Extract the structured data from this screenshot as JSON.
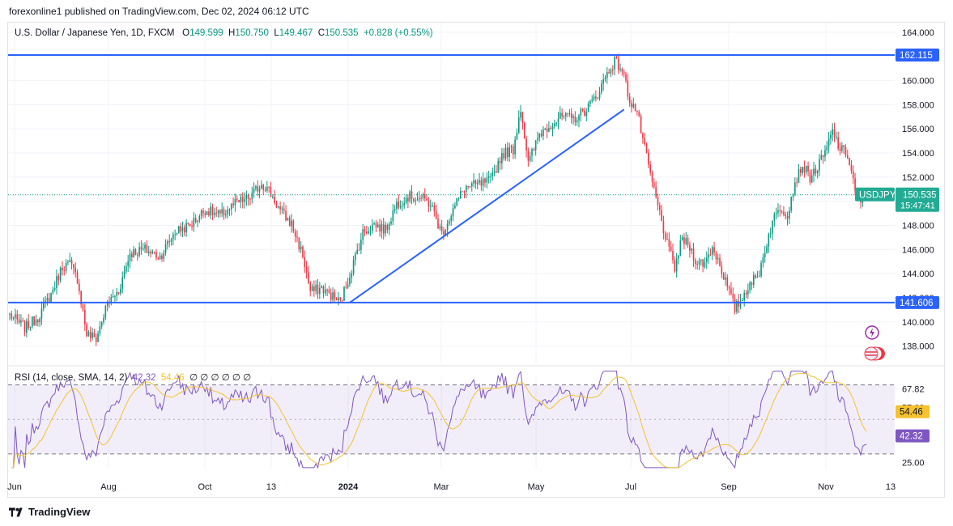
{
  "header": {
    "published": "forexonline1 published on TradingView.com, Dec 02, 2024 06:12 UTC"
  },
  "legend": {
    "symbol": "U.S. Dollar / Japanese Yen, 1D, FXCM",
    "o_label": "O",
    "o": "149.599",
    "h_label": "H",
    "h": "150.750",
    "l_label": "L",
    "l": "149.467",
    "c_label": "C",
    "c": "150.535",
    "change": "+0.828 (+0.55%)"
  },
  "rsi_legend": {
    "label": "RSI (14, close, SMA, 14, 2)",
    "rsi": "42.32",
    "sma": "54.46",
    "extra": "∅ ∅ ∅ ∅ ∅ ∅"
  },
  "price_badges": {
    "level_top": "162.115",
    "level_bottom": "141.606",
    "symbol": "USDJPY",
    "last": "150.535",
    "countdown": "15:47:41",
    "rsi_sma": "54.46",
    "rsi_val": "42.32"
  },
  "footer": {
    "brand": "TradingView"
  },
  "colors": {
    "up": "#089981",
    "down": "#f23645",
    "line": "#2962ff",
    "rsi": "#7e57c2",
    "rsi_sma": "#f5c230",
    "badge_green": "#22ab94"
  },
  "chart_data": {
    "type": "candlestick",
    "symbol": "USDJPY",
    "timeframe": "1D",
    "price_axis": {
      "ticks": [
        "164.000",
        "162.000",
        "160.000",
        "158.000",
        "156.000",
        "154.000",
        "152.000",
        "150.000",
        "148.000",
        "146.000",
        "144.000",
        "142.000",
        "140.000",
        "138.000"
      ],
      "ylim": [
        136.5,
        164.8
      ]
    },
    "x_axis": {
      "labels": [
        "Jun",
        "Aug",
        "Oct",
        "13",
        "2024",
        "Mar",
        "May",
        "Jul",
        "Sep",
        "Nov",
        "13"
      ]
    },
    "anchors": [
      {
        "t": 0,
        "p": 140.6
      },
      {
        "t": 8,
        "p": 139.5
      },
      {
        "t": 15,
        "p": 140.4
      },
      {
        "t": 22,
        "p": 142.3
      },
      {
        "t": 28,
        "p": 144.6
      },
      {
        "t": 32,
        "p": 144.8
      },
      {
        "t": 36,
        "p": 143.6
      },
      {
        "t": 41,
        "p": 139.0
      },
      {
        "t": 46,
        "p": 138.6
      },
      {
        "t": 52,
        "p": 141.5
      },
      {
        "t": 58,
        "p": 142.6
      },
      {
        "t": 64,
        "p": 145.7
      },
      {
        "t": 72,
        "p": 146.0
      },
      {
        "t": 80,
        "p": 145.4
      },
      {
        "t": 88,
        "p": 147.5
      },
      {
        "t": 96,
        "p": 148.0
      },
      {
        "t": 104,
        "p": 149.3
      },
      {
        "t": 112,
        "p": 148.8
      },
      {
        "t": 120,
        "p": 149.8
      },
      {
        "t": 128,
        "p": 150.3
      },
      {
        "t": 134,
        "p": 151.5
      },
      {
        "t": 138,
        "p": 150.9
      },
      {
        "t": 144,
        "p": 149.2
      },
      {
        "t": 150,
        "p": 148.1
      },
      {
        "t": 156,
        "p": 145.5
      },
      {
        "t": 160,
        "p": 142.5
      },
      {
        "t": 166,
        "p": 142.8
      },
      {
        "t": 172,
        "p": 142.1
      },
      {
        "t": 176,
        "p": 141.6
      },
      {
        "t": 182,
        "p": 144.4
      },
      {
        "t": 188,
        "p": 147.4
      },
      {
        "t": 194,
        "p": 148.1
      },
      {
        "t": 200,
        "p": 147.6
      },
      {
        "t": 206,
        "p": 149.8
      },
      {
        "t": 212,
        "p": 150.4
      },
      {
        "t": 218,
        "p": 150.3
      },
      {
        "t": 224,
        "p": 149.8
      },
      {
        "t": 230,
        "p": 147.3
      },
      {
        "t": 236,
        "p": 149.3
      },
      {
        "t": 242,
        "p": 151.1
      },
      {
        "t": 250,
        "p": 151.4
      },
      {
        "t": 256,
        "p": 151.7
      },
      {
        "t": 262,
        "p": 153.9
      },
      {
        "t": 268,
        "p": 154.3
      },
      {
        "t": 272,
        "p": 157.8
      },
      {
        "t": 276,
        "p": 153.1
      },
      {
        "t": 282,
        "p": 155.6
      },
      {
        "t": 288,
        "p": 156.4
      },
      {
        "t": 294,
        "p": 157.0
      },
      {
        "t": 300,
        "p": 156.8
      },
      {
        "t": 306,
        "p": 157.5
      },
      {
        "t": 312,
        "p": 158.6
      },
      {
        "t": 318,
        "p": 160.6
      },
      {
        "t": 322,
        "p": 161.6
      },
      {
        "t": 326,
        "p": 160.9
      },
      {
        "t": 330,
        "p": 158.4
      },
      {
        "t": 334,
        "p": 157.4
      },
      {
        "t": 338,
        "p": 154.3
      },
      {
        "t": 342,
        "p": 151.5
      },
      {
        "t": 346,
        "p": 149.0
      },
      {
        "t": 350,
        "p": 146.4
      },
      {
        "t": 354,
        "p": 144.5
      },
      {
        "t": 358,
        "p": 146.9
      },
      {
        "t": 362,
        "p": 146.2
      },
      {
        "t": 366,
        "p": 144.9
      },
      {
        "t": 370,
        "p": 144.9
      },
      {
        "t": 374,
        "p": 146.2
      },
      {
        "t": 378,
        "p": 144.8
      },
      {
        "t": 382,
        "p": 142.9
      },
      {
        "t": 386,
        "p": 141.1
      },
      {
        "t": 390,
        "p": 142.0
      },
      {
        "t": 394,
        "p": 143.3
      },
      {
        "t": 398,
        "p": 143.6
      },
      {
        "t": 402,
        "p": 146.0
      },
      {
        "t": 406,
        "p": 148.3
      },
      {
        "t": 410,
        "p": 149.5
      },
      {
        "t": 414,
        "p": 149.0
      },
      {
        "t": 418,
        "p": 151.6
      },
      {
        "t": 422,
        "p": 153.0
      },
      {
        "t": 426,
        "p": 152.0
      },
      {
        "t": 430,
        "p": 152.8
      },
      {
        "t": 434,
        "p": 154.0
      },
      {
        "t": 438,
        "p": 155.8
      },
      {
        "t": 442,
        "p": 154.3
      },
      {
        "t": 446,
        "p": 153.9
      },
      {
        "t": 450,
        "p": 151.0
      },
      {
        "t": 453,
        "p": 149.8
      },
      {
        "t": 456,
        "p": 150.5
      }
    ],
    "horizontal_lines": [
      162.115,
      141.606
    ],
    "trendline": {
      "from": {
        "t": 181,
        "p": 141.6
      },
      "to": {
        "t": 327,
        "p": 157.6
      }
    },
    "last_price": 150.535,
    "rsi": {
      "axis_ticks": [
        "67.82",
        "57.00",
        "25.00"
      ],
      "ylim": [
        21,
        75
      ],
      "bands": [
        70,
        30
      ],
      "middle": 50,
      "last_rsi": 42.32,
      "last_sma": 54.46
    }
  }
}
